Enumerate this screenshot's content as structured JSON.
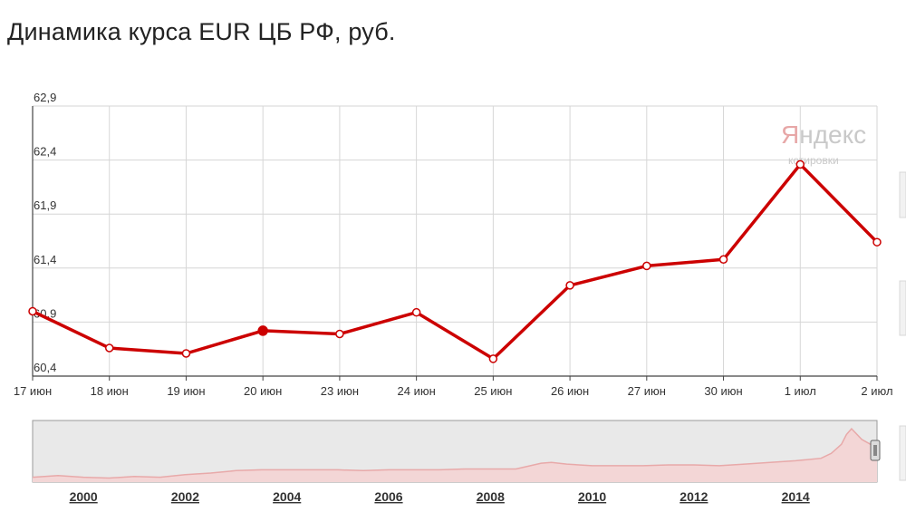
{
  "title": "Динамика курса EUR ЦБ РФ, руб.",
  "watermark": {
    "brand_first": "Я",
    "brand_rest": "ндекс",
    "sub": "котировки"
  },
  "colors": {
    "line": "#cc0000",
    "grid": "#d6d6d6",
    "axis": "#444444",
    "navigator_bg": "#e9e9e9",
    "navigator_line": "#e8a9a9"
  },
  "chart_data": [
    {
      "type": "line",
      "title": "Динамика курса EUR ЦБ РФ, руб.",
      "xlabel": "",
      "ylabel": "",
      "x": [
        "17 июн",
        "18 июн",
        "19 июн",
        "20 июн",
        "23 июн",
        "24 июн",
        "25 июн",
        "26 июн",
        "27 июн",
        "30 июн",
        "1 июл",
        "2 июл"
      ],
      "y_ticks": [
        "60,4",
        "60,9",
        "61,4",
        "61,9",
        "62,4",
        "62,9"
      ],
      "y_tick_values": [
        60.4,
        60.9,
        61.4,
        61.9,
        62.4,
        62.9
      ],
      "ylim": [
        60.4,
        62.9
      ],
      "grid": true,
      "legend": "none",
      "highlighted_point": "20 июн",
      "series": [
        {
          "values": [
            61.0,
            60.66,
            60.61,
            60.82,
            60.79,
            60.99,
            60.56,
            61.24,
            61.42,
            61.48,
            62.36,
            61.64
          ]
        }
      ]
    },
    {
      "type": "area",
      "role": "navigator",
      "xlabel": "",
      "ylabel": "",
      "x_ticks": [
        "2000",
        "2002",
        "2004",
        "2006",
        "2008",
        "2010",
        "2012",
        "2014"
      ],
      "x_tick_values": [
        2000,
        2002,
        2004,
        2006,
        2008,
        2010,
        2012,
        2014
      ],
      "xlim": [
        1999.0,
        2015.6
      ],
      "ylim": [
        20,
        95
      ],
      "series": [
        {
          "x": [
            1999.0,
            1999.5,
            2000.0,
            2000.5,
            2001.0,
            2001.5,
            2002.0,
            2002.5,
            2003.0,
            2003.5,
            2004.0,
            2004.5,
            2005.0,
            2005.5,
            2006.0,
            2006.5,
            2007.0,
            2007.5,
            2008.0,
            2008.5,
            2009.0,
            2009.2,
            2009.5,
            2010.0,
            2010.5,
            2011.0,
            2011.5,
            2012.0,
            2012.5,
            2013.0,
            2013.5,
            2014.0,
            2014.5,
            2014.7,
            2014.9,
            2015.0,
            2015.1,
            2015.3,
            2015.5,
            2015.6
          ],
          "values": [
            26,
            28,
            26,
            25,
            27,
            26,
            29,
            31,
            34,
            35,
            35,
            35,
            35,
            34,
            35,
            35,
            35,
            36,
            36,
            36,
            43,
            44,
            42,
            40,
            40,
            40,
            41,
            41,
            40,
            42,
            44,
            46,
            49,
            55,
            66,
            78,
            85,
            72,
            65,
            62
          ]
        }
      ]
    }
  ]
}
